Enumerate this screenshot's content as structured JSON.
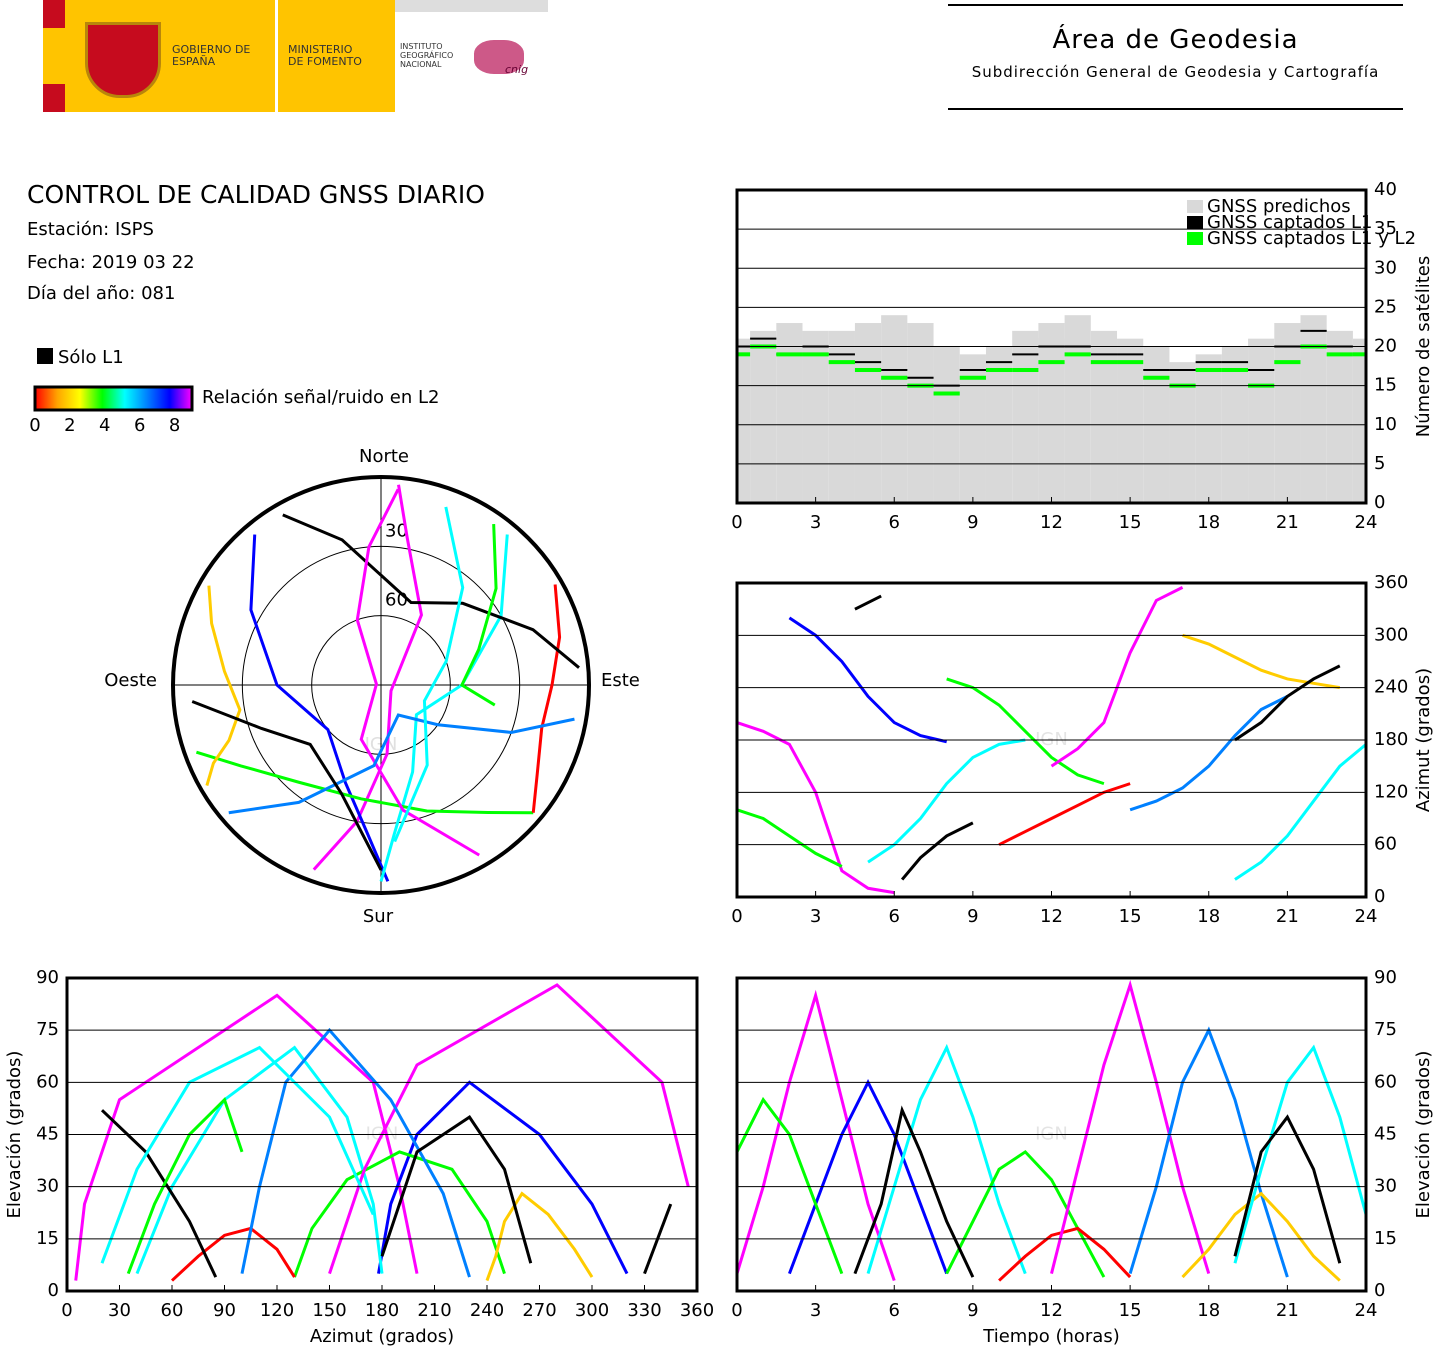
{
  "header": {
    "gov": "GOBIERNO DE ESPAÑA",
    "ministry": "MINISTERIO DE FOMENTO",
    "institute": "INSTITUTO GEOGRÁFICO NACIONAL",
    "cnig": "cnig",
    "area": "Área de Geodesia",
    "subdir": "Subdirección General de Geodesia y Cartografía"
  },
  "info": {
    "title": "CONTROL DE CALIDAD GNSS DIARIO",
    "station": "Estación: ISPS",
    "date": "Fecha: 2019 03 22",
    "doy": "Día del año: 081"
  },
  "legend": {
    "l1_only": "Sólo L1",
    "l1_color": "#000000",
    "snr_label": "Relación señal/ruido en L2",
    "snr_lim": [
      0,
      9
    ],
    "snr_ticks": [
      0,
      2,
      4,
      6,
      8
    ],
    "colors": [
      "#ff0000",
      "#ffa500",
      "#ffff00",
      "#00ff00",
      "#00ffff",
      "#0080ff",
      "#0000ff",
      "#ff00ff"
    ]
  },
  "chart_data": [
    {
      "type": "step",
      "ylabel": "Número de satélites",
      "legend": "upper right",
      "grid": true,
      "xlim": [
        0,
        24
      ],
      "xticks": [
        0,
        3,
        6,
        9,
        12,
        15,
        18,
        21,
        24
      ],
      "ylim": [
        0,
        40
      ],
      "yticks": [
        0,
        5,
        10,
        15,
        20,
        25,
        30,
        35,
        40
      ],
      "x": [
        0,
        1,
        2,
        3,
        4,
        5,
        6,
        7,
        8,
        9,
        10,
        11,
        12,
        13,
        14,
        15,
        16,
        17,
        18,
        19,
        20,
        21,
        22,
        23,
        24
      ],
      "series": [
        {
          "name": "GNSS predichos",
          "color": "#d9d9d9",
          "values": [
            21,
            22,
            23,
            22,
            22,
            23,
            24,
            23,
            20,
            19,
            20,
            22,
            23,
            24,
            22,
            21,
            20,
            18,
            19,
            20,
            21,
            23,
            24,
            22,
            21
          ]
        },
        {
          "name": "GNSS captados L1",
          "color": "#000000",
          "values": [
            20,
            21,
            19,
            20,
            19,
            18,
            17,
            16,
            15,
            17,
            18,
            19,
            20,
            20,
            19,
            19,
            17,
            17,
            18,
            18,
            17,
            20,
            22,
            20,
            19
          ]
        },
        {
          "name": "GNSS captados L1 y L2",
          "color": "#00ff00",
          "values": [
            19,
            20,
            19,
            19,
            18,
            17,
            16,
            15,
            14,
            16,
            17,
            17,
            18,
            19,
            18,
            18,
            16,
            15,
            17,
            17,
            15,
            18,
            20,
            19,
            19
          ]
        }
      ]
    },
    {
      "type": "tracks",
      "watermark": "IGN",
      "sky": {
        "north": "Norte",
        "south": "Sur",
        "east": "Este",
        "west": "Oeste",
        "rings": [
          30,
          60
        ]
      },
      "azimuth_time": {
        "ylabel": "Azimut (grados)",
        "xlim": [
          0,
          24
        ],
        "xticks": [
          0,
          3,
          6,
          9,
          12,
          15,
          18,
          21,
          24
        ],
        "ylim": [
          0,
          360
        ],
        "yticks": [
          0,
          60,
          120,
          180,
          240,
          300,
          360
        ]
      },
      "elevation_azimuth": {
        "xlabel": "Azimut (grados)",
        "ylabel": "Elevación (grados)",
        "xlim": [
          0,
          360
        ],
        "xticks": [
          0,
          30,
          60,
          90,
          120,
          150,
          180,
          210,
          240,
          270,
          300,
          330,
          360
        ],
        "ylim": [
          0,
          90
        ],
        "yticks": [
          0,
          15,
          30,
          45,
          60,
          75,
          90
        ]
      },
      "elevation_time": {
        "xlabel": "Tiempo (horas)",
        "ylabel": "Elevación (grados)",
        "xlim": [
          0,
          24
        ],
        "xticks": [
          0,
          3,
          6,
          9,
          12,
          15,
          18,
          21,
          24
        ],
        "ylim": [
          0,
          90
        ],
        "yticks": [
          0,
          15,
          30,
          45,
          60,
          75,
          90
        ]
      },
      "series": [
        {
          "color": "#ff00ff",
          "time": [
            0,
            1,
            2,
            3,
            4,
            5,
            6
          ],
          "azimuth": [
            200,
            190,
            175,
            120,
            30,
            10,
            5
          ],
          "elevation": [
            5,
            30,
            60,
            85,
            55,
            25,
            3
          ]
        },
        {
          "color": "#0000ff",
          "time": [
            2,
            3,
            4,
            5,
            6,
            7,
            8
          ],
          "azimuth": [
            320,
            300,
            270,
            230,
            200,
            185,
            178
          ],
          "elevation": [
            5,
            25,
            45,
            60,
            45,
            25,
            5
          ]
        },
        {
          "color": "#00ffff",
          "time": [
            5,
            6,
            7,
            8,
            9,
            10,
            11
          ],
          "azimuth": [
            40,
            60,
            90,
            130,
            160,
            175,
            180
          ],
          "elevation": [
            5,
            30,
            55,
            70,
            50,
            25,
            5
          ]
        },
        {
          "color": "#00ff00",
          "time": [
            8,
            9,
            10,
            11,
            12,
            13,
            14
          ],
          "azimuth": [
            250,
            240,
            220,
            190,
            160,
            140,
            130
          ],
          "elevation": [
            5,
            20,
            35,
            40,
            32,
            18,
            4
          ]
        },
        {
          "color": "#ff0000",
          "time": [
            10,
            11,
            12,
            13,
            14,
            15
          ],
          "azimuth": [
            60,
            75,
            90,
            105,
            120,
            130
          ],
          "elevation": [
            3,
            10,
            16,
            18,
            12,
            4
          ]
        },
        {
          "color": "#000000",
          "time": [
            4.5,
            5.5,
            6.3,
            7,
            8,
            9
          ],
          "azimuth": [
            330,
            345,
            20,
            45,
            70,
            85
          ],
          "elevation": [
            5,
            25,
            52,
            40,
            20,
            4
          ]
        },
        {
          "color": "#ff00ff",
          "time": [
            12,
            13,
            14,
            15,
            16,
            17,
            18
          ],
          "azimuth": [
            150,
            170,
            200,
            280,
            340,
            355,
            5
          ],
          "elevation": [
            5,
            35,
            65,
            88,
            60,
            30,
            5
          ]
        },
        {
          "color": "#0080ff",
          "time": [
            15,
            16,
            17,
            18,
            19,
            20,
            21
          ],
          "azimuth": [
            100,
            110,
            125,
            150,
            185,
            215,
            230
          ],
          "elevation": [
            5,
            30,
            60,
            75,
            55,
            28,
            4
          ]
        },
        {
          "color": "#ffcc00",
          "time": [
            17,
            18,
            19,
            20,
            21,
            22,
            23
          ],
          "azimuth": [
            300,
            290,
            275,
            260,
            250,
            245,
            240
          ],
          "elevation": [
            4,
            12,
            22,
            28,
            20,
            10,
            3
          ]
        },
        {
          "color": "#00ffff",
          "time": [
            19,
            20,
            21,
            22,
            23,
            24
          ],
          "azimuth": [
            20,
            40,
            70,
            110,
            150,
            175
          ],
          "elevation": [
            8,
            35,
            60,
            70,
            50,
            22
          ]
        },
        {
          "color": "#000000",
          "time": [
            19,
            20,
            21,
            22,
            23
          ],
          "azimuth": [
            180,
            200,
            230,
            250,
            265
          ],
          "elevation": [
            10,
            40,
            50,
            35,
            8
          ]
        },
        {
          "color": "#00ff00",
          "time": [
            0,
            1,
            2,
            3,
            4
          ],
          "azimuth": [
            100,
            90,
            70,
            50,
            35
          ],
          "elevation": [
            40,
            55,
            45,
            25,
            5
          ]
        }
      ]
    }
  ]
}
